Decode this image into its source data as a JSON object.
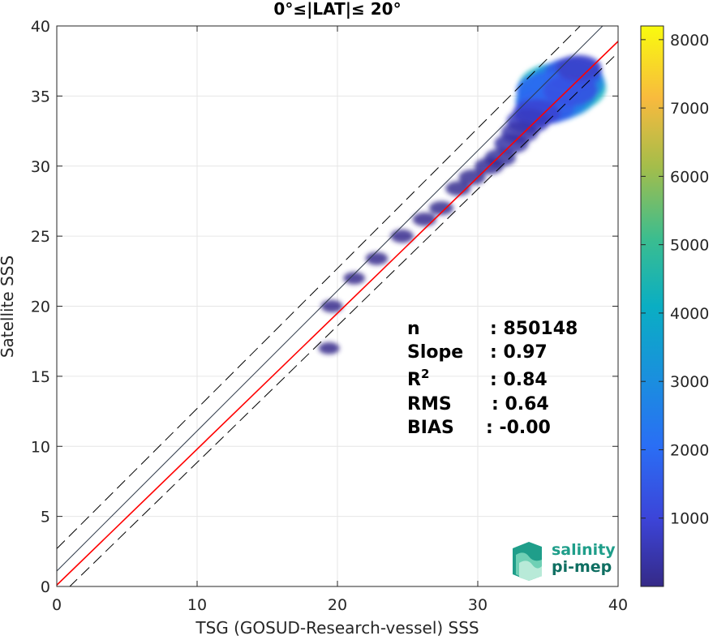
{
  "title": "0°≤|LAT|≤ 20°",
  "chart_data": {
    "type": "heatmap",
    "title": "0°≤|LAT|≤ 20°",
    "xlabel": "TSG (GOSUD-Research-vessel) SSS",
    "ylabel": "Satellite SSS",
    "xlim": [
      0,
      40
    ],
    "ylim": [
      0,
      40
    ],
    "xticks": [
      "0",
      "10",
      "20",
      "30",
      "40"
    ],
    "yticks": [
      "0",
      "5",
      "10",
      "15",
      "20",
      "25",
      "30",
      "35",
      "40"
    ],
    "grid": true,
    "colorbar": {
      "range": [
        0,
        8200
      ],
      "ticks": [
        "1000",
        "2000",
        "3000",
        "4000",
        "5000",
        "6000",
        "7000",
        "8000"
      ],
      "colormap": "parula"
    },
    "lines": [
      {
        "name": "1:1",
        "color": "#2f3a4a",
        "style": "solid",
        "x": [
          0,
          40
        ],
        "y": [
          1.1,
          41.1
        ]
      },
      {
        "name": "fit",
        "color": "#ff0000",
        "style": "solid",
        "slope": 0.97,
        "x": [
          0,
          40
        ],
        "y": [
          0.1,
          38.9
        ]
      },
      {
        "name": "upper bound",
        "color": "#000000",
        "style": "dashed",
        "x": [
          0,
          40
        ],
        "y": [
          2.7,
          42.7
        ]
      },
      {
        "name": "lower bound",
        "color": "#000000",
        "style": "dashed",
        "x": [
          0,
          40
        ],
        "y": [
          -0.9,
          38.1
        ]
      }
    ],
    "stats": [
      {
        "label": "n",
        "value": ": 850148"
      },
      {
        "label": "Slope",
        "value": ": 0.97"
      },
      {
        "label": "R",
        "sup": "2",
        "value": ": 0.84"
      },
      {
        "label": "RMS",
        "value": ": 0.64"
      },
      {
        "label": "BIAS",
        "value": ": -0.00"
      }
    ],
    "density_bins": [
      {
        "x": 36.0,
        "y": 35.6,
        "count": 4200
      },
      {
        "x": 35.6,
        "y": 35.0,
        "count": 3300
      },
      {
        "x": 35.2,
        "y": 34.6,
        "count": 2500
      },
      {
        "x": 36.4,
        "y": 36.0,
        "count": 2800
      },
      {
        "x": 34.8,
        "y": 34.2,
        "count": 1600
      },
      {
        "x": 36.8,
        "y": 36.6,
        "count": 1500
      },
      {
        "x": 35.0,
        "y": 35.4,
        "count": 1900
      },
      {
        "x": 36.6,
        "y": 35.4,
        "count": 1300
      },
      {
        "x": 34.2,
        "y": 33.8,
        "count": 900
      },
      {
        "x": 33.6,
        "y": 33.2,
        "count": 700
      },
      {
        "x": 37.2,
        "y": 37.0,
        "count": 800
      },
      {
        "x": 33.0,
        "y": 32.4,
        "count": 450
      },
      {
        "x": 32.4,
        "y": 31.6,
        "count": 350
      },
      {
        "x": 31.6,
        "y": 30.6,
        "count": 260
      },
      {
        "x": 30.8,
        "y": 30.0,
        "count": 200
      },
      {
        "x": 29.6,
        "y": 29.2,
        "count": 150
      },
      {
        "x": 28.6,
        "y": 28.4,
        "count": 120
      },
      {
        "x": 27.4,
        "y": 27.0,
        "count": 100
      },
      {
        "x": 26.2,
        "y": 26.2,
        "count": 90
      },
      {
        "x": 24.6,
        "y": 25.0,
        "count": 80
      },
      {
        "x": 22.8,
        "y": 23.4,
        "count": 70
      },
      {
        "x": 21.2,
        "y": 22.0,
        "count": 60
      },
      {
        "x": 19.6,
        "y": 20.0,
        "count": 60
      },
      {
        "x": 19.4,
        "y": 17.0,
        "count": 50
      }
    ]
  },
  "logo": {
    "line1": "salinity",
    "line2": "pi-mep"
  }
}
